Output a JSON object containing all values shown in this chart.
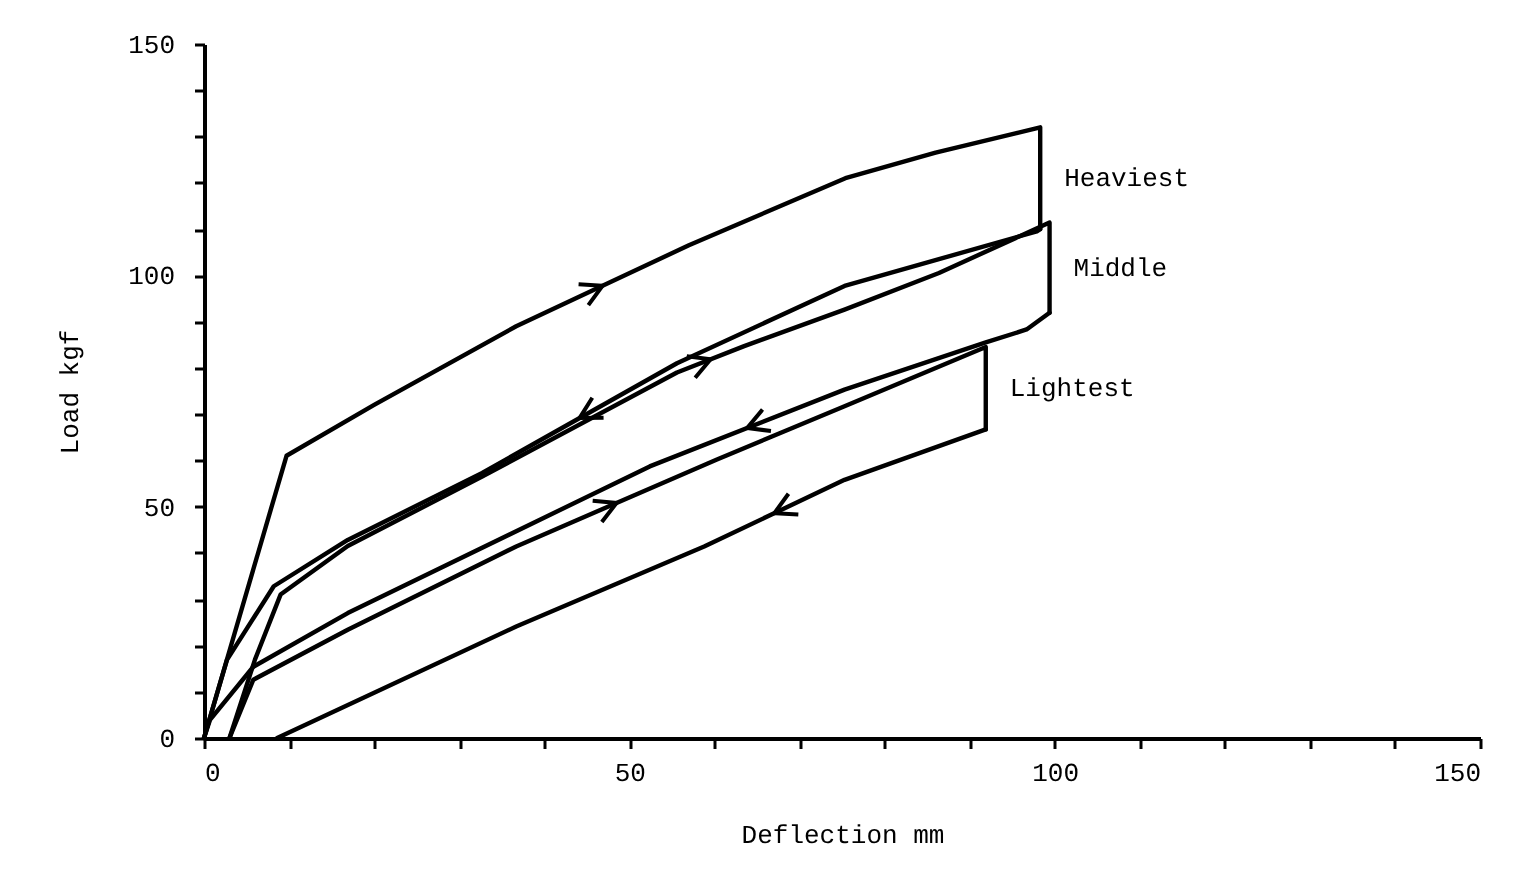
{
  "chart_data": {
    "type": "line",
    "xlabel": "Deflection mm",
    "ylabel": "Load  kgf",
    "xlim": [
      0,
      150
    ],
    "ylim": [
      0,
      150
    ],
    "xticks": [
      0,
      {
        "value": 10,
        "label": null
      },
      {
        "value": 20,
        "label": null
      },
      {
        "value": 30,
        "label": null
      },
      {
        "value": 40,
        "label": null
      },
      50,
      {
        "value": 60,
        "label": null
      },
      {
        "value": 70,
        "label": null
      },
      {
        "value": 80,
        "label": null
      },
      {
        "value": 90,
        "label": null
      },
      100,
      {
        "value": 110,
        "label": null
      },
      {
        "value": 120,
        "label": null
      },
      {
        "value": 130,
        "label": null
      },
      {
        "value": 140,
        "label": null
      },
      150
    ],
    "yticks": [
      0,
      {
        "value": 10,
        "label": null
      },
      {
        "value": 20,
        "label": null
      },
      {
        "value": 30,
        "label": null
      },
      {
        "value": 40,
        "label": null
      },
      50,
      {
        "value": 60,
        "label": null
      },
      {
        "value": 70,
        "label": null
      },
      {
        "value": 80,
        "label": null
      },
      {
        "value": 90,
        "label": null
      },
      100,
      {
        "value": 110,
        "label": null
      },
      {
        "value": 120,
        "label": null
      },
      {
        "value": 130,
        "label": null
      },
      {
        "value": 140,
        "label": null
      },
      150
    ],
    "grid": false,
    "legend": false,
    "marker": "none",
    "line_style": "solid",
    "series": [
      {
        "name": "Heaviest",
        "color": "#000000",
        "x": [
          0,
          9.7,
          20,
          36.7,
          57,
          75.4,
          86,
          98.3,
          98.3
        ],
        "values": [
          0,
          61,
          72,
          89,
          106.5,
          121,
          126.5,
          132,
          110
        ]
      },
      {
        "color": "#000000",
        "x": [
          98.3,
          97.9,
          86.4,
          75.3,
          55.6,
          32.7,
          16.9,
          8.2,
          2.7,
          0
        ],
        "values": [
          110,
          109.5,
          103.5,
          97.7,
          81,
          57.3,
          42.8,
          32.8,
          16.9,
          0
        ]
      },
      {
        "name": "Middle",
        "color": "#000000",
        "x": [
          3,
          6,
          9,
          16.9,
          32.7,
          55.6,
          63.5,
          75.3,
          86.4,
          99.4,
          99.4
        ],
        "values": [
          0,
          17,
          31,
          41.5,
          56.5,
          79,
          84.7,
          92.6,
          100.5,
          111.4,
          91.9
        ]
      },
      {
        "color": "#000000",
        "x": [
          99.4,
          96.7,
          91.9,
          75.3,
          52.4,
          16.9,
          5.8,
          0.7,
          0
        ],
        "values": [
          91.9,
          88.3,
          85.5,
          75.3,
          58.7,
          27,
          15.4,
          3.9,
          0
        ]
      },
      {
        "name": "Lightest",
        "color": "#000000",
        "x": [
          3,
          5.8,
          16.9,
          36.7,
          60.3,
          75.3,
          91.9,
          91.9
        ],
        "values": [
          0,
          12.6,
          23.4,
          41.4,
          60.2,
          71.7,
          84.5,
          66.7
        ]
      },
      {
        "color": "#000000",
        "x": [
          91.9,
          75.3,
          58.8,
          36.7,
          8.6
        ],
        "values": [
          66.7,
          55.8,
          41.4,
          24.1,
          0
        ]
      }
    ]
  }
}
